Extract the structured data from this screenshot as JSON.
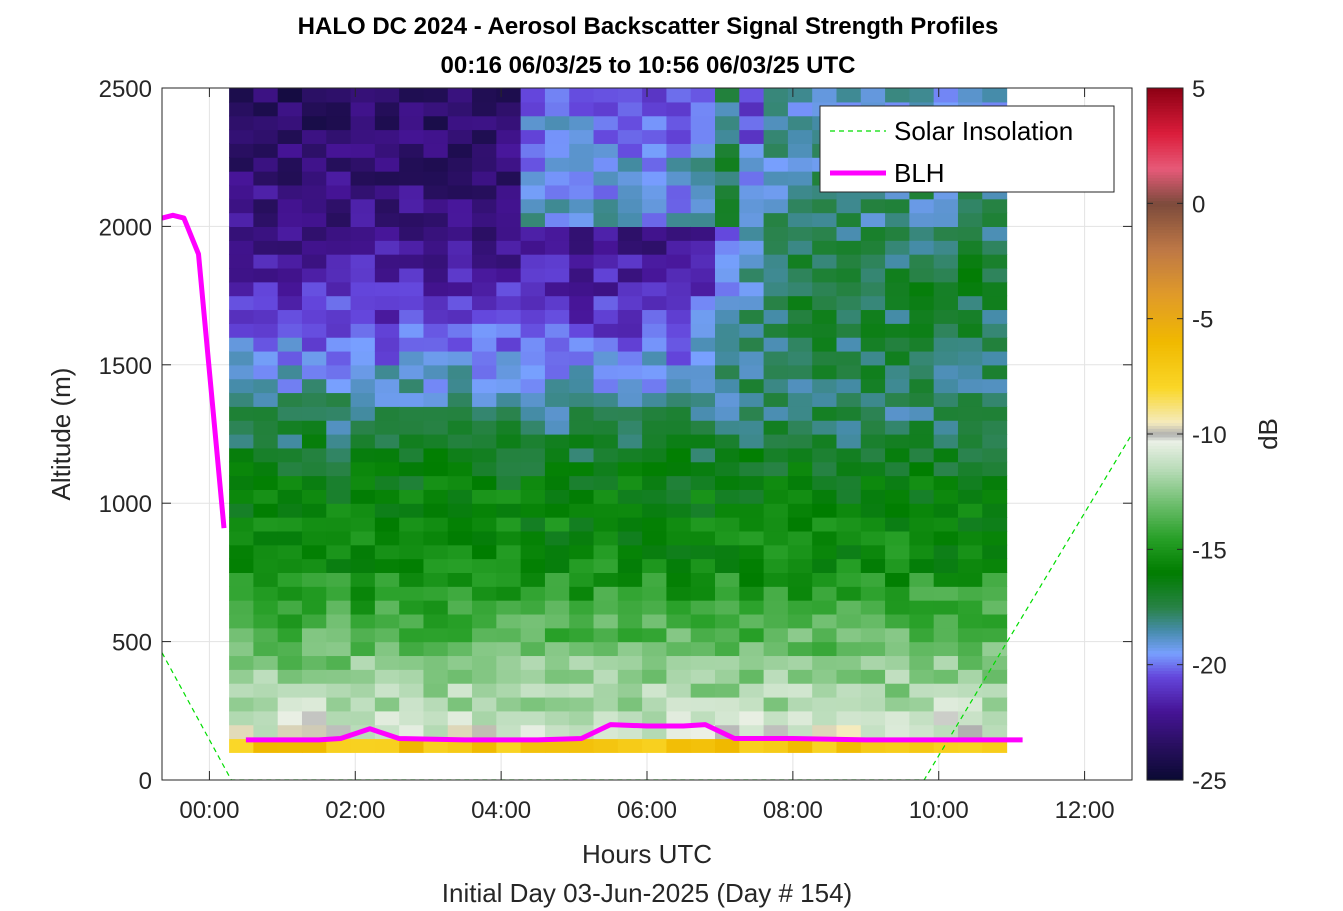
{
  "chart_data": {
    "type": "heatmap",
    "title": "HALO DC 2024 - Aerosol Backscatter Signal Strength Profiles",
    "subtitle": "00:16 06/03/25 to 10:56 06/03/25  UTC",
    "xlabel": "Hours UTC",
    "xlabel2": "Initial Day 03-Jun-2025 (Day # 154)",
    "ylabel": "Altitude (m)",
    "xlim": [
      -0.65,
      12.65
    ],
    "ylim": [
      0,
      2500
    ],
    "x_ticks": [
      0,
      2,
      4,
      6,
      8,
      10,
      12
    ],
    "x_tick_labels": [
      "00:00",
      "02:00",
      "04:00",
      "06:00",
      "08:00",
      "10:00",
      "12:00"
    ],
    "y_ticks": [
      0,
      500,
      1000,
      1500,
      2000,
      2500
    ],
    "y_tick_labels": [
      "0",
      "500",
      "1000",
      "1500",
      "2000",
      "2500"
    ],
    "colorbar": {
      "label": "dB",
      "range": [
        -25,
        5
      ],
      "ticks": [
        5,
        0,
        -5,
        -10,
        -15,
        -20,
        -25
      ],
      "tick_labels": [
        "5",
        "0",
        "-5",
        "-10",
        "-15",
        "-20",
        "-25"
      ]
    },
    "grid": true,
    "legend_position": "top-right",
    "heatmap": {
      "x_start": 0.27,
      "x_end": 10.93,
      "n_cols": 32,
      "y_start": 100,
      "y_end": 2500,
      "n_rows": 48,
      "profile_anchors": [
        {
          "alt": 120,
          "db": -6.5
        },
        {
          "alt": 170,
          "db": -10.5
        },
        {
          "alt": 250,
          "db": -11.5
        },
        {
          "alt": 400,
          "db": -12.5
        },
        {
          "alt": 600,
          "db": -14.0
        },
        {
          "alt": 800,
          "db": -15.5
        },
        {
          "alt": 1050,
          "db": -16.0
        },
        {
          "alt": 1250,
          "db": -17.5
        },
        {
          "alt": 1450,
          "db": -19.0
        },
        {
          "alt": 1700,
          "db": -21.0
        },
        {
          "alt": 2000,
          "db": -22.5
        },
        {
          "alt": 2300,
          "db": -23.0
        },
        {
          "alt": 2500,
          "db": -23.5
        }
      ]
    },
    "series": [
      {
        "name": "Solar Insolation",
        "color": "#00dd00",
        "style": "dashed",
        "x": [
          -0.65,
          0.3,
          9.8,
          12.65
        ],
        "y": [
          460,
          0,
          0,
          1250
        ]
      },
      {
        "name": "BLH",
        "color": "#ff00ff",
        "style": "solid",
        "segments": [
          {
            "x": [
              -0.65,
              -0.5,
              -0.35,
              -0.15,
              0.2
            ],
            "y": [
              2030,
              2040,
              2030,
              1900,
              910
            ]
          },
          {
            "x": [
              0.5,
              1.5,
              1.8,
              2.2,
              2.6,
              3.5,
              4.5,
              5.1,
              5.5,
              6.0,
              6.5,
              6.8,
              7.2,
              8.0,
              9.0,
              10.0,
              11.15
            ],
            "y": [
              145,
              145,
              150,
              185,
              150,
              145,
              145,
              150,
              200,
              195,
              195,
              200,
              150,
              150,
              145,
              145,
              145
            ]
          }
        ]
      }
    ]
  }
}
